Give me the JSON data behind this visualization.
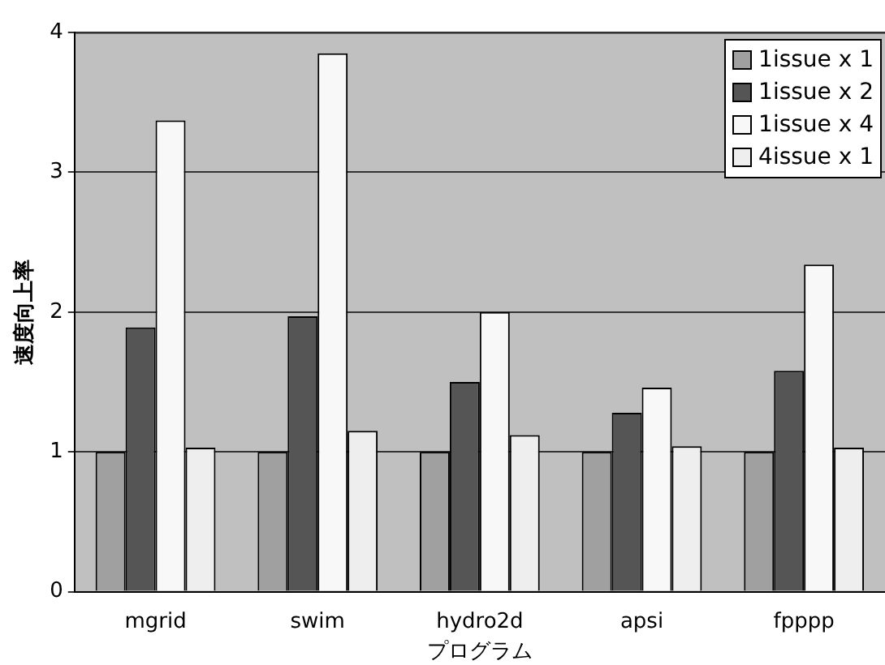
{
  "chart_data": {
    "type": "bar",
    "xlabel": "プログラム",
    "ylabel": "速度向上率",
    "categories": [
      "mgrid",
      "swim",
      "hydro2d",
      "apsi",
      "fpppp"
    ],
    "series": [
      {
        "name": "1issue x 1",
        "color": "#a0a0a0",
        "values": [
          1,
          1,
          1,
          1,
          1
        ]
      },
      {
        "name": "1issue x 2",
        "color": "#555555",
        "values": [
          1.89,
          1.97,
          1.5,
          1.28,
          1.58
        ]
      },
      {
        "name": "1issue x 4",
        "color": "#f8f8f8",
        "values": [
          3.37,
          3.85,
          2.0,
          1.46,
          2.34
        ]
      },
      {
        "name": "4issue x 1",
        "color": "#eeeeee",
        "values": [
          1.03,
          1.15,
          1.12,
          1.04,
          1.03
        ]
      }
    ],
    "ylim": [
      0,
      4
    ],
    "yticks": [
      0,
      1,
      2,
      3,
      4
    ],
    "grid": "y",
    "legend": "top right"
  }
}
